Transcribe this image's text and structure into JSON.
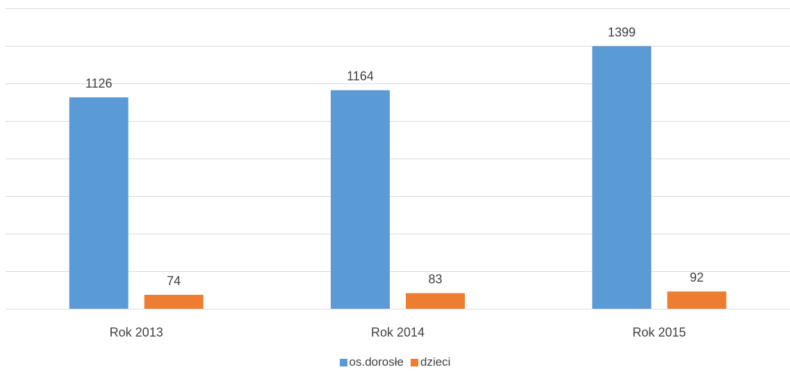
{
  "chart_data": {
    "type": "bar",
    "categories": [
      "Rok 2013",
      "Rok 2014",
      "Rok 2015"
    ],
    "series": [
      {
        "name": "os.dorosłe",
        "values": [
          1126,
          1164,
          1399
        ],
        "color": "#5B9BD5"
      },
      {
        "name": "dzieci",
        "values": [
          74,
          83,
          92
        ],
        "color": "#ED7D31"
      }
    ],
    "ylim": [
      0,
      1600
    ],
    "y_gridline_step": 200,
    "y_axis_labels_shown": false,
    "grid": true,
    "data_labels": true,
    "legend_position": "bottom",
    "title": "",
    "xlabel": "",
    "ylabel": ""
  }
}
